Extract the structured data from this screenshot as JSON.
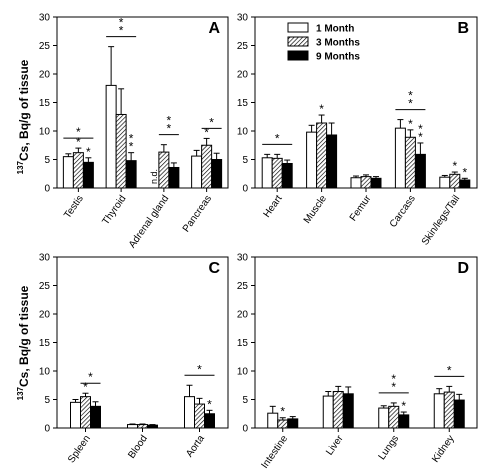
{
  "chart_data": [
    {
      "type": "bar",
      "panel_letter": "A",
      "ylim": [
        0,
        30
      ],
      "yticks": [
        0,
        5,
        10,
        15,
        20,
        25,
        30
      ],
      "categories": [
        "Testis",
        "Thyroid",
        "Adrenal gland",
        "Pancreas"
      ],
      "series": [
        {
          "name": "1 Month",
          "values": [
            5.5,
            18.0,
            null,
            5.6
          ],
          "errors": [
            0.5,
            6.8,
            null,
            1.0
          ]
        },
        {
          "name": "3 Months",
          "values": [
            6.2,
            12.9,
            6.3,
            7.5
          ],
          "errors": [
            0.8,
            4.5,
            1.3,
            1.2
          ]
        },
        {
          "name": "9 Months",
          "values": [
            4.5,
            4.8,
            3.6,
            5.0
          ],
          "errors": [
            0.8,
            1.4,
            0.8,
            1.1
          ]
        }
      ],
      "annotations": [
        {
          "category": 1,
          "text": "n.d.",
          "series": 0,
          "category_index": 2
        },
        {
          "text": "*",
          "category_index": 0,
          "series": 1
        },
        {
          "text": "*",
          "category_index": 0,
          "series": 2
        },
        {
          "text": "*",
          "category_index": 0,
          "bracket": [
            0,
            2
          ]
        },
        {
          "text": "* *",
          "category_index": 1,
          "bracket": [
            0,
            2
          ]
        },
        {
          "text": "* *",
          "category_index": 1,
          "series": 2
        },
        {
          "text": "* *",
          "category_index": 2,
          "bracket": [
            1,
            2
          ]
        },
        {
          "text": "*",
          "category_index": 3,
          "series": 1
        },
        {
          "text": "*",
          "category_index": 3,
          "bracket": [
            1,
            2
          ]
        }
      ]
    },
    {
      "type": "bar",
      "panel_letter": "B",
      "ylim": [
        0,
        30
      ],
      "yticks": [
        0,
        5,
        10,
        15,
        20,
        25,
        30
      ],
      "categories": [
        "Heart",
        "Muscle",
        "Femur",
        "Carcass",
        "Skin/legs/Tail"
      ],
      "series": [
        {
          "name": "1 Month",
          "values": [
            5.3,
            9.8,
            1.8,
            10.5,
            1.9
          ],
          "errors": [
            0.6,
            1.2,
            0.3,
            1.5,
            0.3
          ]
        },
        {
          "name": "3 Months",
          "values": [
            5.2,
            11.4,
            2.0,
            8.9,
            2.4
          ],
          "errors": [
            0.7,
            1.4,
            0.3,
            1.3,
            0.4
          ]
        },
        {
          "name": "9 Months",
          "values": [
            4.3,
            9.3,
            1.7,
            5.9,
            1.4
          ],
          "errors": [
            0.6,
            2.1,
            0.3,
            2.0,
            0.3
          ]
        }
      ],
      "annotations": [
        {
          "text": "*",
          "category_index": 0,
          "bracket": [
            0,
            2
          ]
        },
        {
          "text": "*",
          "category_index": 1,
          "series": 1
        },
        {
          "text": "* *",
          "category_index": 3,
          "bracket": [
            0,
            2
          ]
        },
        {
          "text": "*",
          "category_index": 3,
          "series": 1
        },
        {
          "text": "* *",
          "category_index": 3,
          "series": 2
        },
        {
          "text": "*",
          "category_index": 4,
          "series": 1
        },
        {
          "text": "*",
          "category_index": 4,
          "series": 2
        }
      ]
    },
    {
      "type": "bar",
      "panel_letter": "C",
      "ylim": [
        0,
        30
      ],
      "yticks": [
        0,
        5,
        10,
        15,
        20,
        25,
        30
      ],
      "categories": [
        "Spleen",
        "Blood",
        "Aorta"
      ],
      "series": [
        {
          "name": "1 Month",
          "values": [
            4.5,
            0.6,
            5.5
          ],
          "errors": [
            0.5,
            0.1,
            2.0
          ]
        },
        {
          "name": "3 Months",
          "values": [
            5.5,
            0.6,
            4.2
          ],
          "errors": [
            0.6,
            0.1,
            1.0
          ]
        },
        {
          "name": "9 Months",
          "values": [
            3.8,
            0.5,
            2.5
          ],
          "errors": [
            0.8,
            0.1,
            0.6
          ]
        }
      ],
      "annotations": [
        {
          "text": "*",
          "category_index": 0,
          "series": 1
        },
        {
          "text": "*",
          "category_index": 0,
          "bracket": [
            1,
            2
          ]
        },
        {
          "text": "*",
          "category_index": 2,
          "bracket": [
            0,
            2
          ]
        },
        {
          "text": "*",
          "category_index": 2,
          "series": 2
        }
      ]
    },
    {
      "type": "bar",
      "panel_letter": "D",
      "ylim": [
        0,
        30
      ],
      "yticks": [
        0,
        5,
        10,
        15,
        20,
        25,
        30
      ],
      "categories": [
        "Intestine",
        "Liver",
        "Lungs",
        "Kidney"
      ],
      "series": [
        {
          "name": "1 Month",
          "values": [
            2.6,
            5.6,
            3.5,
            6.0
          ],
          "errors": [
            1.2,
            0.8,
            0.4,
            0.9
          ]
        },
        {
          "name": "3 Months",
          "values": [
            1.4,
            6.4,
            3.8,
            6.3
          ],
          "errors": [
            0.4,
            0.9,
            0.6,
            1.0
          ]
        },
        {
          "name": "9 Months",
          "values": [
            1.6,
            6.0,
            2.3,
            4.9
          ],
          "errors": [
            0.4,
            1.2,
            0.5,
            1.0
          ]
        }
      ],
      "annotations": [
        {
          "text": "*",
          "category_index": 0,
          "series": 1
        },
        {
          "text": "* *",
          "category_index": 2,
          "bracket": [
            0,
            2
          ]
        },
        {
          "text": "*",
          "category_index": 2,
          "series": 2
        },
        {
          "text": "*",
          "category_index": 3,
          "bracket": [
            0,
            2
          ]
        }
      ]
    }
  ],
  "legend": {
    "placement": "top-right of panel B",
    "entries": [
      "1 Month",
      "3 Months",
      "9 Months"
    ]
  },
  "ylabel_sup": "137",
  "ylabel_main": "Cs, Bq/g of tissue",
  "nd_label": "n.d."
}
